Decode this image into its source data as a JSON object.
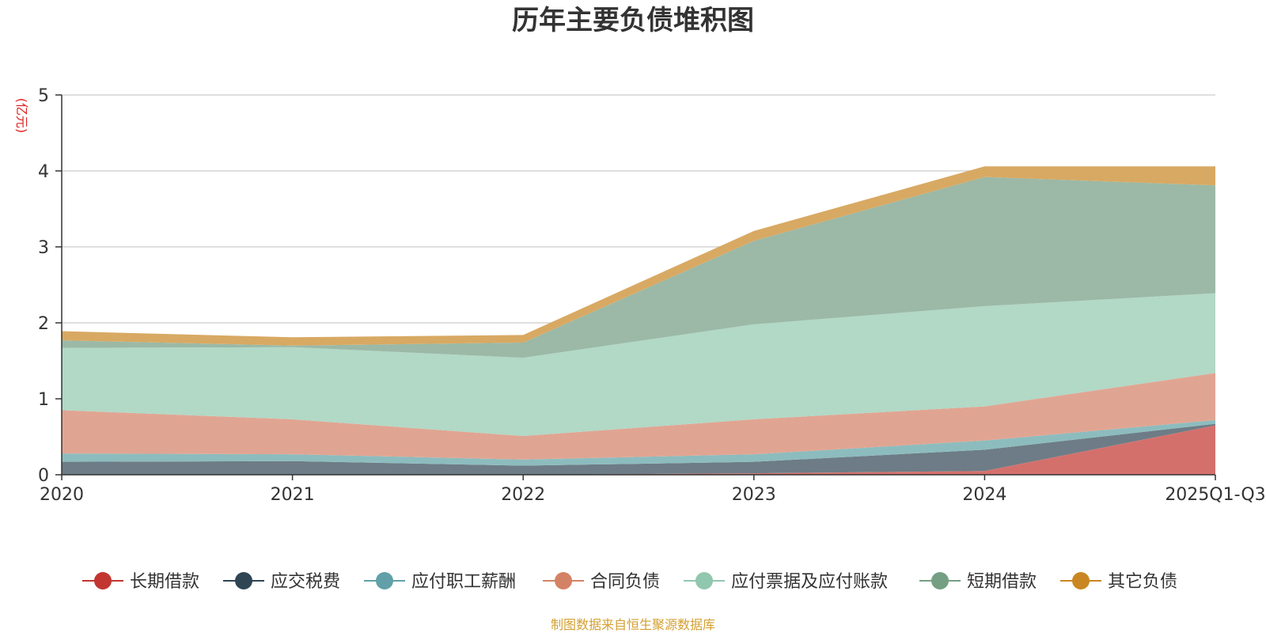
{
  "chart_data": {
    "type": "area",
    "stacked": true,
    "title": "历年主要负债堆积图",
    "unit": "(亿元)",
    "source": "制图数据来自恒生聚源数据库",
    "categories": [
      "2020",
      "2021",
      "2022",
      "2023",
      "2024",
      "2025Q1-Q3"
    ],
    "ylim": [
      0,
      5
    ],
    "yticks": [
      0,
      1,
      2,
      3,
      4,
      5
    ],
    "grid": true,
    "legend_position": "bottom",
    "series": [
      {
        "name": "长期借款",
        "color": "#c23531",
        "fill_color": "#d4706c",
        "values": [
          0,
          0,
          0,
          0.02,
          0.05,
          0.65
        ]
      },
      {
        "name": "应交税费",
        "color": "#2f4554",
        "fill_color": "#6d7c86",
        "values": [
          0.17,
          0.18,
          0.12,
          0.15,
          0.28,
          0.02
        ]
      },
      {
        "name": "应付职工薪酬",
        "color": "#61a0a8",
        "fill_color": "#8dbcbe",
        "values": [
          0.11,
          0.09,
          0.08,
          0.1,
          0.12,
          0.05
        ]
      },
      {
        "name": "合同负债",
        "color": "#d48265",
        "fill_color": "#e0a592",
        "values": [
          0.57,
          0.46,
          0.31,
          0.46,
          0.45,
          0.62
        ]
      },
      {
        "name": "应付票据及应付账款",
        "color": "#91c7ae",
        "fill_color": "#b2d8c6",
        "values": [
          0.82,
          0.95,
          1.03,
          1.25,
          1.32,
          1.05
        ]
      },
      {
        "name": "短期借款",
        "color": "#749f83",
        "fill_color": "#9bb9a6",
        "values": [
          0.1,
          0.02,
          0.2,
          1.1,
          1.7,
          1.42
        ]
      },
      {
        "name": "其它负债",
        "color": "#ca8622",
        "fill_color": "#d8a963",
        "values": [
          0.12,
          0.11,
          0.1,
          0.13,
          0.14,
          0.25
        ]
      }
    ]
  }
}
